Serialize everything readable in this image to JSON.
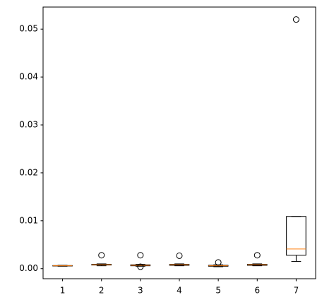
{
  "chart_data": {
    "type": "box",
    "categories": [
      "1",
      "2",
      "3",
      "4",
      "5",
      "6",
      "7"
    ],
    "box_color": "#000000",
    "median_color": "#ff7f0e",
    "boxes": [
      {
        "min": 0.0005,
        "q1": 0.00055,
        "median": 0.0006,
        "q3": 0.00065,
        "max": 0.0007,
        "outliers": []
      },
      {
        "min": 0.0006,
        "q1": 0.00075,
        "median": 0.0008,
        "q3": 0.0009,
        "max": 0.001,
        "outliers": [
          0.0028
        ]
      },
      {
        "min": 0.0005,
        "q1": 0.0006,
        "median": 0.0007,
        "q3": 0.0008,
        "max": 0.0009,
        "outliers": [
          0.0028,
          0.0004
        ]
      },
      {
        "min": 0.0006,
        "q1": 0.0007,
        "median": 0.0008,
        "q3": 0.0009,
        "max": 0.001,
        "outliers": [
          0.0027
        ]
      },
      {
        "min": 0.0004,
        "q1": 0.0005,
        "median": 0.0006,
        "q3": 0.0007,
        "max": 0.0008,
        "outliers": [
          0.0013
        ]
      },
      {
        "min": 0.0006,
        "q1": 0.0007,
        "median": 0.0008,
        "q3": 0.0009,
        "max": 0.001,
        "outliers": [
          0.0028
        ]
      },
      {
        "min": 0.0015,
        "q1": 0.0028,
        "median": 0.0041,
        "q3": 0.0109,
        "max": 0.0109,
        "outliers": [
          0.052
        ]
      }
    ],
    "ylim": [
      -0.0021,
      0.0546
    ],
    "yticks": [
      {
        "value": 0,
        "label": "0.00"
      },
      {
        "value": 0.01,
        "label": "0.01"
      },
      {
        "value": 0.02,
        "label": "0.02"
      },
      {
        "value": 0.03,
        "label": "0.03"
      },
      {
        "value": 0.04,
        "label": "0.04"
      },
      {
        "value": 0.05,
        "label": "0.05"
      }
    ]
  }
}
